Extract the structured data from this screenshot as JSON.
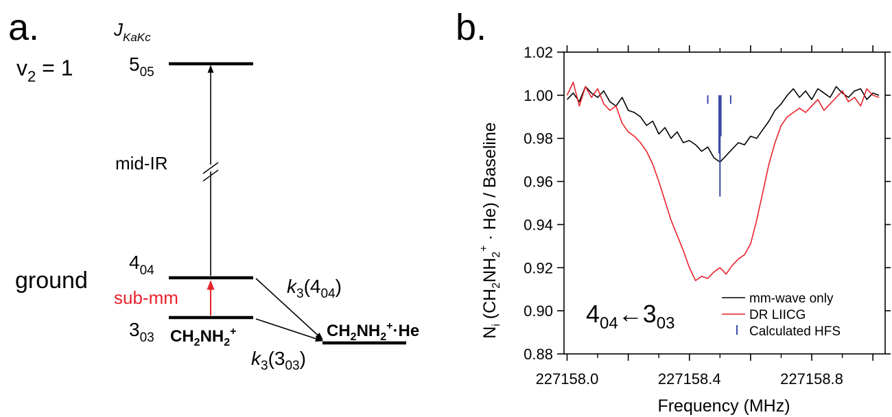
{
  "panel_a": {
    "label": "a.",
    "j_label_main": "J",
    "j_label_sub": "KaKc",
    "vib_main": "v",
    "vib_sub": "2",
    "vib_rest": " = 1",
    "ground": "ground",
    "level_505_main": "5",
    "level_505_sub": "05",
    "level_404_main": "4",
    "level_404_sub": "04",
    "level_303_main": "3",
    "level_303_sub": "03",
    "mid_ir": "mid-IR",
    "sub_mm": "sub-mm",
    "ion_a": "CH",
    "ion_b": "2",
    "ion_c": "NH",
    "ion_d": "2",
    "ion_e": "+",
    "complex_a": "CH",
    "complex_b": "2",
    "complex_c": "NH",
    "complex_d": "2",
    "complex_e": "+",
    "complex_f": "·He",
    "k_404_k": "k",
    "k_404_sub": "3",
    "k_404_open": "(4",
    "k_404_lvl": "04",
    "k_404_close": ")",
    "k_303_k": "k",
    "k_303_sub": "3",
    "k_303_open": "(3",
    "k_303_lvl": "03",
    "k_303_close": ")",
    "colors": {
      "submm": "#e8212a",
      "text": "#000000"
    }
  },
  "panel_b": {
    "label": "b.",
    "ylabel": {
      "p1": "N",
      "p1_sub": "i",
      "p2": " (CH",
      "p2_sub": "2",
      "p3": "NH",
      "p3_sub": "2",
      "p3_sup": "+",
      "p4": " · He) / Baseline"
    },
    "xlabel": "Frequency (MHz)",
    "transition": {
      "a": "4",
      "a_sub": "04",
      "arrow": "←",
      "b": "3",
      "b_sub": "03"
    },
    "legend": [
      "mm-wave only",
      "DR LIICG",
      "Calculated HFS"
    ]
  },
  "chart_data": {
    "type": "line",
    "title": "",
    "xlabel": "Frequency (MHz)",
    "ylabel": "Ni (CH2NH2+ · He) / Baseline",
    "xlim": [
      227157.99,
      227159.04
    ],
    "ylim": [
      0.88,
      1.02
    ],
    "xticks": [
      227158.0,
      227158.4,
      227158.8
    ],
    "xtick_labels": [
      "227158.0",
      "227158.4",
      "227158.8"
    ],
    "yticks": [
      0.88,
      0.9,
      0.92,
      0.94,
      0.96,
      0.98,
      1.0,
      1.02
    ],
    "ytick_labels": [
      "0.88",
      "0.90",
      "0.92",
      "0.94",
      "0.96",
      "0.98",
      "1.00",
      "1.02"
    ],
    "legend_position": "bottom-right",
    "grid": false,
    "series": [
      {
        "name": "mm-wave only",
        "color": "#000000",
        "x": [
          227158.0,
          227158.02,
          227158.04,
          227158.06,
          227158.08,
          227158.1,
          227158.12,
          227158.14,
          227158.16,
          227158.18,
          227158.2,
          227158.22,
          227158.24,
          227158.26,
          227158.28,
          227158.3,
          227158.32,
          227158.34,
          227158.36,
          227158.38,
          227158.4,
          227158.42,
          227158.44,
          227158.46,
          227158.48,
          227158.5,
          227158.52,
          227158.54,
          227158.56,
          227158.58,
          227158.6,
          227158.62,
          227158.64,
          227158.66,
          227158.68,
          227158.7,
          227158.72,
          227158.74,
          227158.76,
          227158.78,
          227158.8,
          227158.82,
          227158.84,
          227158.86,
          227158.88,
          227158.9,
          227158.92,
          227158.94,
          227158.96,
          227158.98,
          227159.0,
          227159.02
        ],
        "y": [
          0.998,
          1.001,
          0.997,
          1.004,
          1.001,
          0.999,
          1.002,
          0.997,
          0.995,
          0.999,
          0.993,
          0.992,
          0.99,
          0.986,
          0.988,
          0.982,
          0.985,
          0.98,
          0.983,
          0.978,
          0.979,
          0.977,
          0.974,
          0.976,
          0.971,
          0.969,
          0.972,
          0.975,
          0.978,
          0.977,
          0.981,
          0.98,
          0.984,
          0.988,
          0.993,
          0.996,
          1.0,
          1.003,
          0.999,
          1.002,
          0.998,
          1.003,
          1.001,
          0.999,
          1.004,
          1.001,
          0.999,
          1.002,
          1.003,
          0.998,
          1.001,
          1.0
        ]
      },
      {
        "name": "DR LIICG",
        "color": "#e8212a",
        "x": [
          227158.0,
          227158.02,
          227158.04,
          227158.06,
          227158.08,
          227158.1,
          227158.12,
          227158.14,
          227158.16,
          227158.18,
          227158.2,
          227158.22,
          227158.24,
          227158.26,
          227158.28,
          227158.3,
          227158.32,
          227158.34,
          227158.36,
          227158.38,
          227158.4,
          227158.42,
          227158.44,
          227158.46,
          227158.48,
          227158.5,
          227158.52,
          227158.54,
          227158.56,
          227158.58,
          227158.6,
          227158.62,
          227158.64,
          227158.66,
          227158.68,
          227158.7,
          227158.72,
          227158.74,
          227158.76,
          227158.78,
          227158.8,
          227158.82,
          227158.84,
          227158.86,
          227158.88,
          227158.9,
          227158.92,
          227158.94,
          227158.96,
          227158.98,
          227159.0,
          227159.02
        ],
        "y": [
          1.0,
          1.006,
          0.995,
          1.004,
          0.999,
          1.003,
          0.996,
          0.993,
          0.995,
          0.987,
          0.983,
          0.981,
          0.978,
          0.974,
          0.968,
          0.96,
          0.951,
          0.942,
          0.935,
          0.928,
          0.92,
          0.914,
          0.916,
          0.915,
          0.918,
          0.92,
          0.917,
          0.921,
          0.924,
          0.926,
          0.931,
          0.942,
          0.955,
          0.968,
          0.978,
          0.986,
          0.99,
          0.992,
          0.994,
          0.992,
          0.995,
          0.998,
          0.993,
          0.996,
          0.999,
          1.002,
          0.997,
          0.999,
          0.995,
          1.003,
          1.0,
          0.999
        ]
      }
    ],
    "hfs_sticks": {
      "name": "Calculated HFS",
      "color": "#3a4aa8",
      "x": [
        227158.46,
        227158.497,
        227158.5,
        227158.503,
        227158.535
      ],
      "height": [
        0.004,
        0.027,
        0.047,
        0.019,
        0.004
      ]
    }
  }
}
